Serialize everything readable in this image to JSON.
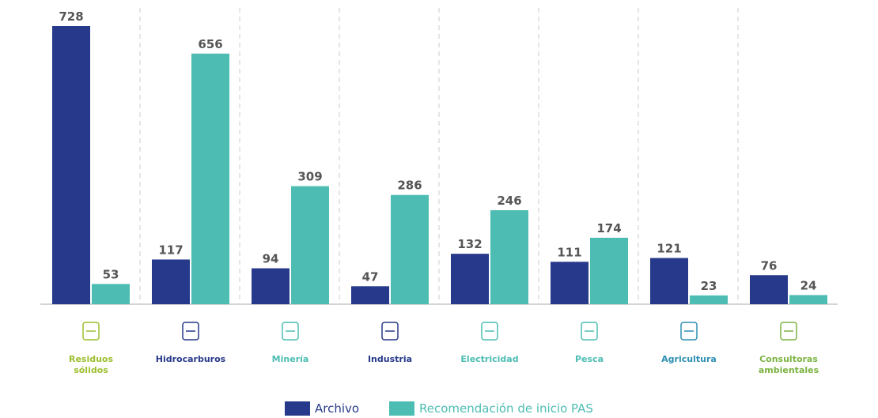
{
  "chart_data": {
    "type": "bar",
    "categories": [
      "Residuos sólidos",
      "Hidrocarburos",
      "Minería",
      "Industria",
      "Electricidad",
      "Pesca",
      "Agricultura",
      "Consultoras ambientales"
    ],
    "category_colors": [
      "#9cbf2e",
      "#27398a",
      "#4dbdb3",
      "#27398a",
      "#4dbdb3",
      "#4dbdb3",
      "#2f8fb3",
      "#7cb342"
    ],
    "series": [
      {
        "name": "Archivo",
        "color": "#27398a",
        "values": [
          728,
          117,
          94,
          47,
          132,
          111,
          121,
          76
        ]
      },
      {
        "name": "Recomendación de inicio PAS",
        "color": "#4dbdb3",
        "values": [
          53,
          656,
          309,
          286,
          246,
          174,
          23,
          24
        ]
      }
    ],
    "legend": "bottom"
  }
}
